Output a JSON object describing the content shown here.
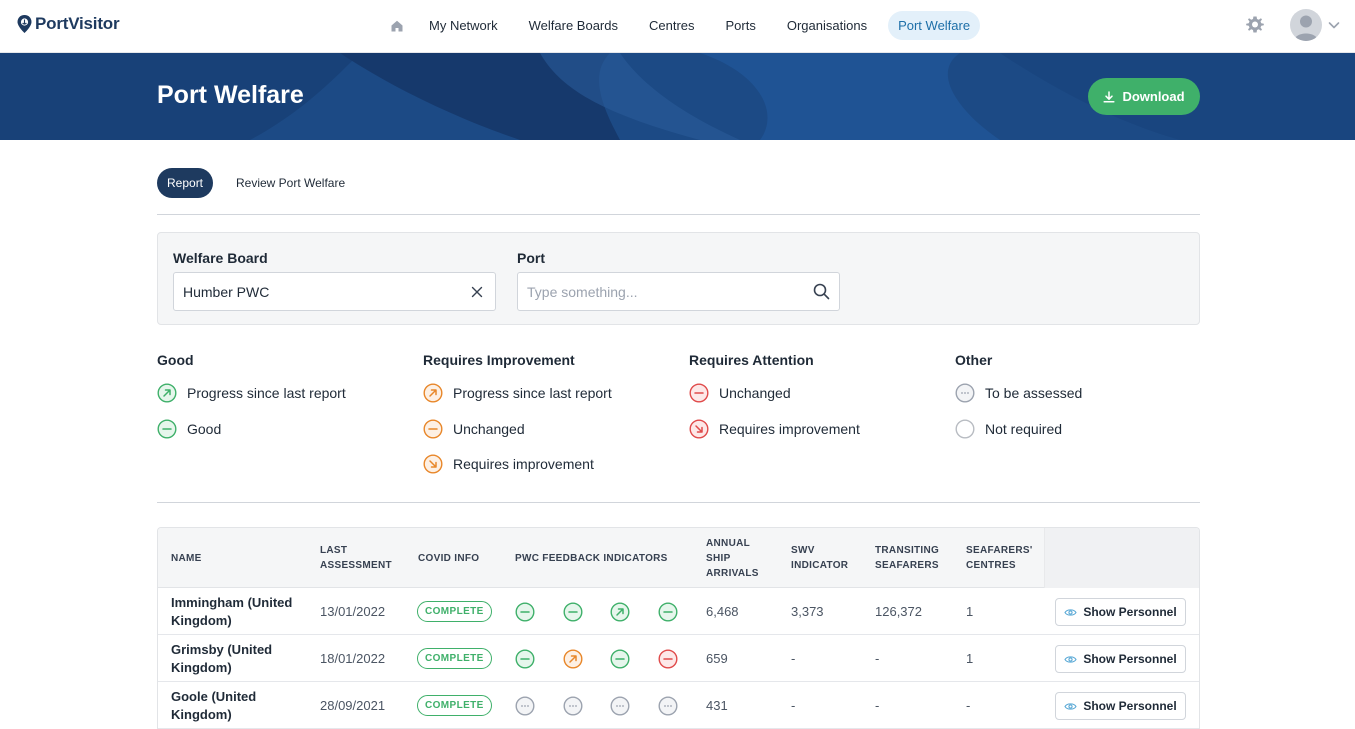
{
  "brand": {
    "name": "PortVisitor"
  },
  "nav": {
    "items": [
      {
        "label": "My Network",
        "active": false
      },
      {
        "label": "Welfare Boards",
        "active": false
      },
      {
        "label": "Centres",
        "active": false
      },
      {
        "label": "Ports",
        "active": false
      },
      {
        "label": "Organisations",
        "active": false
      },
      {
        "label": "Port Welfare",
        "active": true
      }
    ],
    "icons": {
      "home": "home-icon",
      "settings": "gear-icon",
      "user": "avatar",
      "menu": "chevron-down-icon"
    }
  },
  "banner": {
    "title": "Port Welfare",
    "download_label": "Download"
  },
  "tabs": [
    {
      "label": "Report",
      "active": true
    },
    {
      "label": "Review Port Welfare",
      "active": false
    }
  ],
  "filters": {
    "welfare_board": {
      "label": "Welfare Board",
      "value": "Humber PWC"
    },
    "port": {
      "label": "Port",
      "placeholder": "Type something..."
    }
  },
  "legend": {
    "good": {
      "title": "Good",
      "items": [
        "Progress since last report",
        "Good"
      ]
    },
    "improvement": {
      "title": "Requires Improvement",
      "items": [
        "Progress since last report",
        "Unchanged",
        "Requires improvement"
      ]
    },
    "attention": {
      "title": "Requires Attention",
      "items": [
        "Unchanged",
        "Requires improvement"
      ]
    },
    "other": {
      "title": "Other",
      "items": [
        "To be assessed",
        "Not required"
      ]
    }
  },
  "colors": {
    "green": "#3fb06a",
    "orange": "#e8872a",
    "red": "#e04b4b",
    "grey": "#9ca3af",
    "navy": "#1e3a5f"
  },
  "table": {
    "headers": {
      "name": "NAME",
      "last_assessment_1": "LAST",
      "last_assessment_2": "ASSESSMENT",
      "covid": "COVID INFO",
      "pwc": "PWC FEEDBACK INDICATORS",
      "arrivals_1": "ANNUAL",
      "arrivals_2": "SHIP",
      "arrivals_3": "ARRIVALS",
      "swv_1": "SWV",
      "swv_2": "INDICATOR",
      "transiting_1": "TRANSITING",
      "transiting_2": "SEAFARERS",
      "centres_1": "SEAFARERS'",
      "centres_2": "CENTRES"
    },
    "action_label": "Show Personnel",
    "rows": [
      {
        "name_1": "Immingham (United",
        "name_2": "Kingdom)",
        "last_assessment": "13/01/2022",
        "covid": "COMPLETE",
        "indicators": [
          "green-flat",
          "green-flat",
          "green-up",
          "green-flat"
        ],
        "arrivals": "6,468",
        "swv": "3,373",
        "transiting": "126,372",
        "centres": "1"
      },
      {
        "name_1": "Grimsby (United",
        "name_2": "Kingdom)",
        "last_assessment": "18/01/2022",
        "covid": "COMPLETE",
        "indicators": [
          "green-flat",
          "orange-up",
          "green-flat",
          "red-flat"
        ],
        "arrivals": "659",
        "swv": "-",
        "transiting": "-",
        "centres": "1"
      },
      {
        "name_1": "Goole (United",
        "name_2": "Kingdom)",
        "last_assessment": "28/09/2021",
        "covid": "COMPLETE",
        "indicators": [
          "grey-dots",
          "grey-dots",
          "grey-dots",
          "grey-dots"
        ],
        "arrivals": "431",
        "swv": "-",
        "transiting": "-",
        "centres": "-"
      }
    ]
  }
}
